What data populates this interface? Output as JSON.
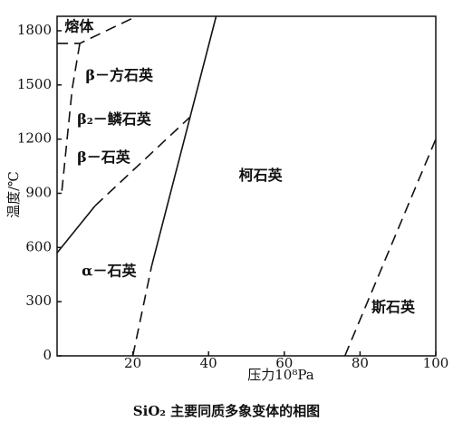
{
  "chart_data": {
    "type": "line",
    "caption": "SiO₂ 主要同质多象变体的相图",
    "x_label": "压力10⁸Pa",
    "y_label": "温度/℃",
    "xlim": [
      0,
      100
    ],
    "ylim": [
      0,
      1880
    ],
    "xticks": [
      20,
      40,
      60,
      80,
      100
    ],
    "yticks": [
      0,
      300,
      600,
      900,
      1200,
      1500,
      1800
    ],
    "color": "#111111",
    "series": [
      {
        "style": "solid",
        "x": [
          0,
          10
        ],
        "values": [
          570,
          830
        ]
      },
      {
        "style": "dashed",
        "x": [
          10,
          35
        ],
        "values": [
          830,
          1320
        ]
      },
      {
        "style": "dashed",
        "x": [
          20,
          25
        ],
        "values": [
          0,
          500
        ]
      },
      {
        "style": "solid",
        "x": [
          25,
          42
        ],
        "values": [
          500,
          1880
        ]
      },
      {
        "style": "dashed",
        "x": [
          76,
          100
        ],
        "values": [
          0,
          1200
        ]
      },
      {
        "style": "dashed",
        "x": [
          0,
          6,
          21
        ],
        "values": [
          1730,
          1730,
          1880
        ]
      },
      {
        "style": "dashed",
        "x": [
          6,
          4,
          1.2
        ],
        "values": [
          1730,
          1480,
          900
        ]
      }
    ],
    "annotations": [
      {
        "text": "熔体",
        "x": 2,
        "y": 1820
      },
      {
        "text": "β－方石英",
        "x": 7.5,
        "y": 1550
      },
      {
        "text": "β₂－鳞石英",
        "x": 5.3,
        "y": 1305
      },
      {
        "text": "β－石英",
        "x": 5.3,
        "y": 1095
      },
      {
        "text": "柯石英",
        "x": 48,
        "y": 995
      },
      {
        "text": "α－石英",
        "x": 6.5,
        "y": 467
      },
      {
        "text": "斯石英",
        "x": 83,
        "y": 266
      }
    ]
  }
}
